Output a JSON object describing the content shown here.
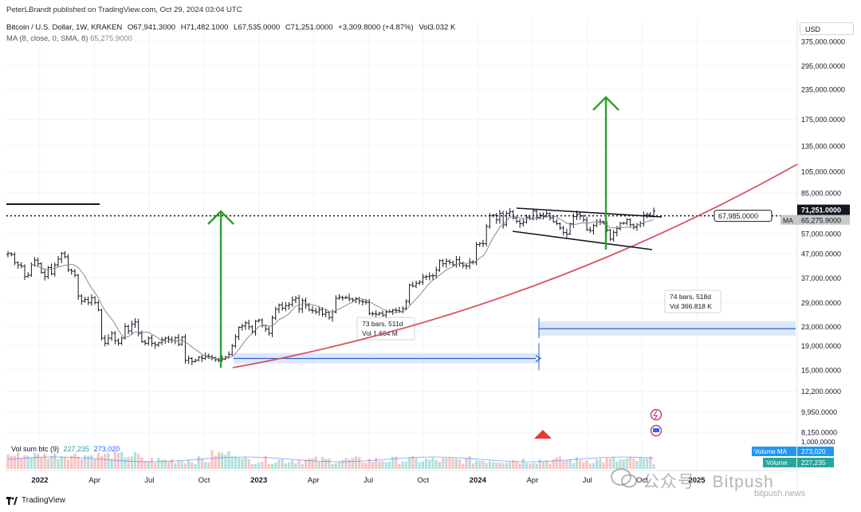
{
  "header": {
    "published": "PeterLBrandt published on TradingView.com, Oct 29, 2024 03:04 UTC",
    "symbol": "Bitcoin / U.S. Dollar, 1W, KRAKEN",
    "open": "O67,941.3000",
    "high": "H71,482.1000",
    "low": "L67,535.0000",
    "close": "C71,251.0000",
    "change": "+3,309.8000 (+4.87%)",
    "volume": "Vol3.032 K",
    "ma_label": "MA (8, close, 0, SMA, 8)",
    "ma_value": "65,275.9000",
    "currency": "USD"
  },
  "footer": {
    "brand": "TradingView"
  },
  "watermark": {
    "text": "公众号 · Bitpush",
    "sub": "bitpush.news"
  },
  "chart_data": {
    "type": "candlestick-ohlc",
    "scale": "log",
    "ylim": [
      7500,
      400000
    ],
    "y_ticks": [
      "375,000.0000",
      "295,000.0000",
      "235,000.0000",
      "175,000.0000",
      "135,000.0000",
      "105,000.0000",
      "85,000.0000",
      "67,985.0000",
      "57,000.0000",
      "47,000.0000",
      "37,000.0000",
      "29,000.0000",
      "23,000.0000",
      "19,000.0000",
      "15,000.0000",
      "12,200.0000",
      "9,950.0000",
      "8,150.0000"
    ],
    "y_tick_values": [
      375000,
      295000,
      235000,
      175000,
      135000,
      105000,
      85000,
      67985,
      57000,
      47000,
      37000,
      29000,
      23000,
      19000,
      15000,
      12200,
      9950,
      8150
    ],
    "x_ticks": [
      "2022",
      "Apr",
      "Jul",
      "Oct",
      "2023",
      "Apr",
      "Jul",
      "Oct",
      "2024",
      "Apr",
      "Jul",
      "Oct",
      "2025"
    ],
    "x_tick_dates": [
      "2022-01",
      "2022-04",
      "2022-07",
      "2022-10",
      "2023-01",
      "2023-04",
      "2023-07",
      "2023-10",
      "2024-01",
      "2024-04",
      "2024-07",
      "2024-10",
      "2025-01"
    ],
    "price_labels": {
      "last": "71,251.0000",
      "ma": "65,275.9000",
      "ma_tag": "MA",
      "horizontal_level": "67,985.0000"
    },
    "annotations": [
      {
        "text_1": "73 bars, 511d",
        "text_2": "Vol 1.604 M"
      },
      {
        "text_1": "74 bars, 518d",
        "text_2": "Vol 366.818 K"
      }
    ],
    "series": [
      {
        "name": "Bitcoin / U.S. Dollar",
        "weekly_close": [
          47000,
          46500,
          43000,
          42000,
          41500,
          37500,
          38000,
          42000,
          44000,
          42500,
          39000,
          37500,
          41000,
          38500,
          42000,
          44500,
          47000,
          45500,
          40000,
          39500,
          38000,
          31000,
          29500,
          30000,
          29000,
          30500,
          29000,
          27000,
          20500,
          19500,
          20500,
          21500,
          20000,
          19500,
          20500,
          23000,
          22000,
          23500,
          24000,
          21500,
          19800,
          19500,
          20500,
          19500,
          19200,
          19600,
          20200,
          20500,
          20300,
          20000,
          20600,
          19300,
          20700,
          16500,
          16800,
          16300,
          16500,
          17000,
          16800,
          17200,
          17100,
          16900,
          16600,
          16500,
          16700,
          17000,
          17500,
          19000,
          20800,
          22800,
          23100,
          23800,
          22900,
          21800,
          24200,
          24500,
          23200,
          22400,
          21500,
          25000,
          27200,
          28400,
          27500,
          28200,
          28500,
          29800,
          30300,
          27300,
          29600,
          28300,
          27000,
          26800,
          26500,
          27100,
          25900,
          26400,
          25100,
          26500,
          30300,
          30600,
          30400,
          30500,
          30100,
          29800,
          30200,
          29500,
          29300,
          29100,
          26100,
          26050,
          25900,
          26200,
          25700,
          26500,
          26600,
          27000,
          26900,
          26600,
          27400,
          29400,
          34500,
          34100,
          35100,
          35500,
          37300,
          37500,
          37700,
          37800,
          39900,
          43800,
          42500,
          43600,
          43000,
          42100,
          44200,
          42600,
          41800,
          41500,
          43200,
          43100,
          51300,
          51900,
          51700,
          61200,
          68000,
          68400,
          65300,
          69700,
          62200,
          69600,
          70800,
          66600,
          64400,
          62900,
          63800,
          67000,
          66200,
          71300,
          66800,
          68400,
          67600,
          69600,
          66600,
          64100,
          62900,
          60300,
          57700,
          56900,
          62800,
          67400,
          69200,
          67900,
          65300,
          59300,
          58800,
          61800,
          64000,
          64200,
          63500,
          59100,
          54100,
          57800,
          60000,
          63200,
          63300,
          65500,
          62300,
          60700,
          62200,
          63000,
          68400,
          68800,
          68000,
          71251
        ]
      },
      {
        "name": "MA (8, close, 0, SMA, 8)"
      },
      {
        "name": "Vol sum btc (9)",
        "ma_value": "273,020",
        "value": "227,235"
      }
    ],
    "volume_legend": {
      "label": "Vol sum btc (9)",
      "v1": "227,235",
      "v2": "273,020",
      "tag_ma": "Volume MA",
      "tag_ma_value": "273,020",
      "tag_vol": "Volume",
      "tag_vol_value": "227,235"
    },
    "colors": {
      "ma": "#7f7f7f",
      "trend": "#d9535f",
      "target_arrow": "#2ca02c",
      "range_fill": "#cfe0f7",
      "range_line": "#2f5fd0",
      "alert": "#e53935"
    }
  }
}
